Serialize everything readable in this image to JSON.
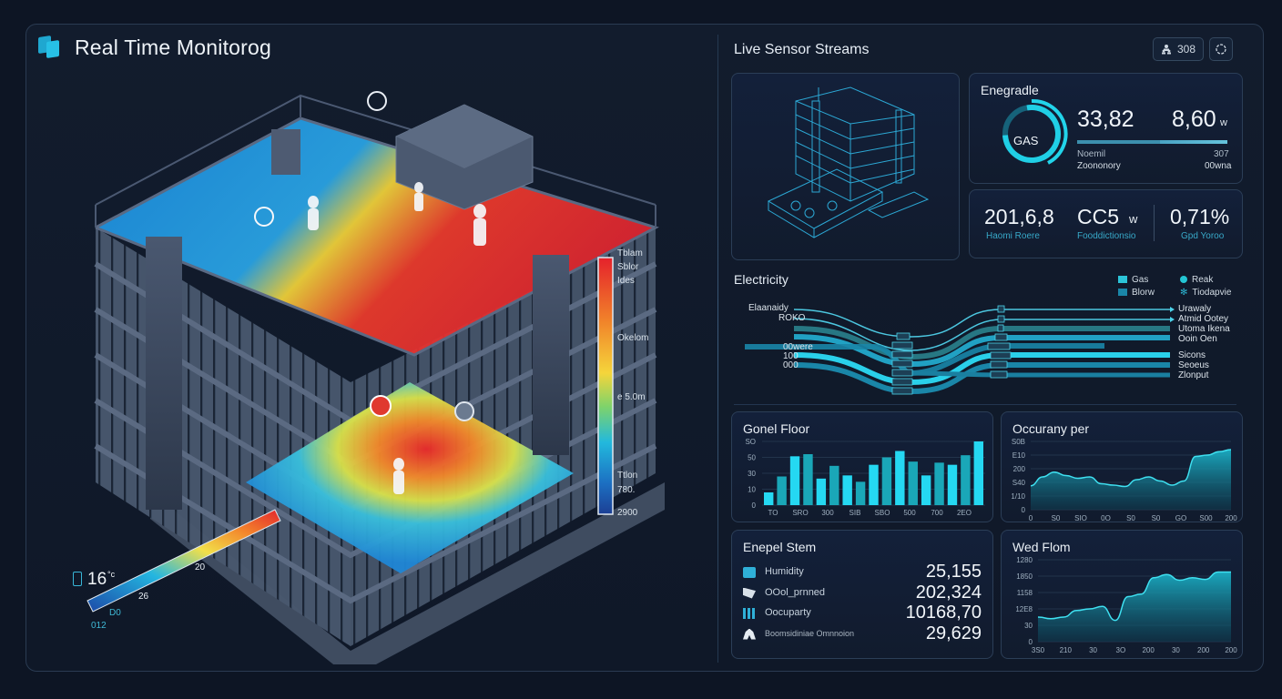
{
  "app": {
    "title": "Real Time Monitorog",
    "icon": "layers-icon"
  },
  "building_view": {
    "colorbar_vertical": {
      "labels": [
        "Tblam",
        "Sblor",
        "Ides",
        "Okelom",
        "e 5.0m",
        "Ttlon",
        "780.",
        "2900"
      ],
      "gradient": [
        "#e5212b",
        "#f1842a",
        "#f5d53b",
        "#7fd36a",
        "#22b9dd",
        "#1c6fc2",
        "#1c3f94"
      ]
    },
    "colorbar_diagonal": {
      "temperature": "16",
      "unit": "°c",
      "labels": [
        "20",
        "26",
        "D0",
        "012",
        "D"
      ]
    }
  },
  "right_panel": {
    "title": "Live Sensor Streams",
    "toolbar": {
      "users_count": "308",
      "users_icon": "users-icon",
      "refresh_icon": "refresh-icon"
    },
    "model_card": {
      "name": "3D building wireframe"
    },
    "gauge_card": {
      "title": "Enegradle",
      "gauge_label": "GAS",
      "gauge_percent": 72,
      "value_1": "33,82",
      "value_2": "8,60",
      "value_2_unit": "w",
      "sub_left_1": "Noemil",
      "sub_left_2": "Zoononory",
      "sub_right_1": "307",
      "sub_right_2": "00wna"
    },
    "kpi_card": {
      "items": [
        {
          "value": "201,6,8",
          "unit": "",
          "label": "Haomi Roere"
        },
        {
          "value": "CC5",
          "unit": "w",
          "label": "Fooddictionsio"
        },
        {
          "value": "0,71%",
          "unit": "",
          "label": "Gpd Yoroo"
        }
      ]
    },
    "sankey": {
      "title": "Electricity",
      "legend": [
        {
          "label": "Gas",
          "shape": "square",
          "color": "#2cc4d8"
        },
        {
          "label": "Reak",
          "shape": "dot",
          "color": "#24c6d4"
        },
        {
          "label": "Blorw",
          "shape": "square",
          "color": "#1a86a8"
        },
        {
          "label": "Tiodapvie",
          "shape": "snowflake",
          "color": "#2cb3cf"
        }
      ],
      "left_labels": [
        "Elaanaidy",
        "ROKO",
        "00were",
        "100",
        "000"
      ],
      "right_labels": [
        "Urawaly",
        "Atmid Ootey",
        "Utoma Ikena",
        "Ooin Oen",
        "Sicons",
        "Seoeus",
        "Zlonput"
      ]
    },
    "bar_card": {
      "title": "Gonel Floor"
    },
    "area_card_1": {
      "title": "Occurany per"
    },
    "stats_card": {
      "title": "Enepel Stem",
      "rows": [
        {
          "icon": "humidity-icon",
          "label": "Humidity",
          "value": "25,155"
        },
        {
          "icon": "co2-icon",
          "label": "OOol_prnned",
          "value": "202,324"
        },
        {
          "icon": "occupancy-icon",
          "label": "Oocuparty",
          "value": "10168,70"
        },
        {
          "icon": "person-icon",
          "label": "Boomsidiniae Omnnoion",
          "value": "29,629"
        }
      ]
    },
    "area_card_2": {
      "title": "Wed Flom"
    }
  },
  "chart_data": [
    {
      "type": "bar",
      "title": "Gonel Floor",
      "categories": [
        "1",
        "2",
        "3",
        "4",
        "5",
        "6",
        "7",
        "8",
        "9",
        "10",
        "11",
        "12",
        "13",
        "14",
        "15",
        "16",
        "17"
      ],
      "x_tick_labels": [
        "TO",
        "SRO",
        "300",
        "SIB",
        "SBO",
        "500",
        "700",
        "2EO"
      ],
      "values": [
        12,
        27,
        46,
        48,
        25,
        37,
        28,
        22,
        38,
        45,
        51,
        41,
        28,
        40,
        38,
        47,
        60
      ],
      "y_tick_labels": [
        "0",
        "10",
        "30",
        "50",
        "SO"
      ],
      "ylim": [
        0,
        60
      ],
      "colors": [
        "#25d8f2",
        "#1aa7b8"
      ]
    },
    {
      "type": "area",
      "title": "Occurany per",
      "x_tick_labels": [
        "0",
        "S0",
        "SIO",
        "0O",
        "S0",
        "S0",
        "GO",
        "S00",
        "200"
      ],
      "y_tick_labels": [
        "0",
        "1/10",
        "S40",
        "200",
        "E10",
        "S0B"
      ],
      "values": [
        35,
        48,
        55,
        50,
        46,
        48,
        38,
        36,
        34,
        44,
        48,
        42,
        36,
        42,
        78,
        80,
        85,
        88
      ],
      "ylim": [
        0,
        100
      ]
    },
    {
      "type": "area",
      "title": "Wed Flom",
      "x_tick_labels": [
        "3S0",
        "210",
        "30",
        "3O",
        "200",
        "30",
        "200",
        "200"
      ],
      "y_tick_labels": [
        "0",
        "30",
        "12E8",
        "1158",
        "1850",
        "1280"
      ],
      "values": [
        30,
        28,
        30,
        38,
        40,
        43,
        26,
        55,
        58,
        78,
        82,
        75,
        78,
        76,
        85,
        85
      ],
      "ylim": [
        0,
        100
      ]
    }
  ]
}
